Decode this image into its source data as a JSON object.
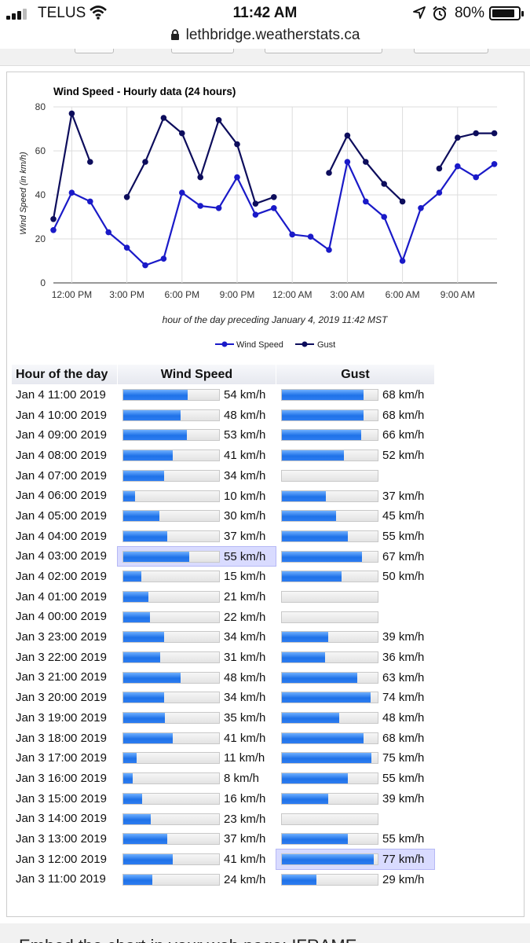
{
  "status_bar": {
    "carrier": "TELUS",
    "time": "11:42 AM",
    "battery_pct": "80%"
  },
  "browser": {
    "url": "lethbridge.weatherstats.ca"
  },
  "chart_data": {
    "type": "line",
    "title": "Wind Speed - Hourly data (24 hours)",
    "ylabel": "Wind Speed (in km/h)",
    "xlabel": "hour of the day preceding January 4, 2019 11:42 MST",
    "ylim": [
      0,
      80
    ],
    "yticks": [
      "0",
      "20",
      "40",
      "60",
      "80"
    ],
    "x_tick_labels": [
      "12:00 PM",
      "3:00 PM",
      "6:00 PM",
      "9:00 PM",
      "12:00 AM",
      "3:00 AM",
      "6:00 AM",
      "9:00 AM"
    ],
    "x": [
      "Jan 3 11:00",
      "Jan 3 12:00",
      "Jan 3 13:00",
      "Jan 3 14:00",
      "Jan 3 15:00",
      "Jan 3 16:00",
      "Jan 3 17:00",
      "Jan 3 18:00",
      "Jan 3 19:00",
      "Jan 3 20:00",
      "Jan 3 21:00",
      "Jan 3 22:00",
      "Jan 3 23:00",
      "Jan 4 00:00",
      "Jan 4 01:00",
      "Jan 4 02:00",
      "Jan 4 03:00",
      "Jan 4 04:00",
      "Jan 4 05:00",
      "Jan 4 06:00",
      "Jan 4 07:00",
      "Jan 4 08:00",
      "Jan 4 09:00",
      "Jan 4 10:00",
      "Jan 4 11:00"
    ],
    "series": [
      {
        "name": "Wind Speed",
        "color": "#1a1ac8",
        "values": [
          24,
          41,
          37,
          23,
          16,
          8,
          11,
          41,
          35,
          34,
          48,
          31,
          34,
          22,
          21,
          15,
          55,
          37,
          30,
          10,
          34,
          41,
          53,
          48,
          54
        ]
      },
      {
        "name": "Gust",
        "color": "#0d0d5c",
        "values": [
          29,
          77,
          55,
          null,
          39,
          55,
          75,
          68,
          48,
          74,
          63,
          36,
          39,
          null,
          null,
          50,
          67,
          55,
          45,
          37,
          null,
          52,
          66,
          68,
          68
        ]
      }
    ],
    "legend": "bottom",
    "grid": true
  },
  "table": {
    "headers": {
      "hour": "Hour of the day",
      "wind": "Wind Speed",
      "gust": "Gust"
    },
    "bar_max": 80,
    "rows": [
      {
        "hour": "Jan 4 11:00 2019",
        "wind": 54,
        "wind_text": "54 km/h",
        "gust": 68,
        "gust_text": "68 km/h"
      },
      {
        "hour": "Jan 4 10:00 2019",
        "wind": 48,
        "wind_text": "48 km/h",
        "gust": 68,
        "gust_text": "68 km/h"
      },
      {
        "hour": "Jan 4 09:00 2019",
        "wind": 53,
        "wind_text": "53 km/h",
        "gust": 66,
        "gust_text": "66 km/h"
      },
      {
        "hour": "Jan 4 08:00 2019",
        "wind": 41,
        "wind_text": "41 km/h",
        "gust": 52,
        "gust_text": "52 km/h"
      },
      {
        "hour": "Jan 4 07:00 2019",
        "wind": 34,
        "wind_text": "34 km/h",
        "gust": null,
        "gust_text": ""
      },
      {
        "hour": "Jan 4 06:00 2019",
        "wind": 10,
        "wind_text": "10 km/h",
        "gust": 37,
        "gust_text": "37 km/h"
      },
      {
        "hour": "Jan 4 05:00 2019",
        "wind": 30,
        "wind_text": "30 km/h",
        "gust": 45,
        "gust_text": "45 km/h"
      },
      {
        "hour": "Jan 4 04:00 2019",
        "wind": 37,
        "wind_text": "37 km/h",
        "gust": 55,
        "gust_text": "55 km/h"
      },
      {
        "hour": "Jan 4 03:00 2019",
        "wind": 55,
        "wind_text": "55 km/h",
        "gust": 67,
        "gust_text": "67 km/h",
        "wind_max": true
      },
      {
        "hour": "Jan 4 02:00 2019",
        "wind": 15,
        "wind_text": "15 km/h",
        "gust": 50,
        "gust_text": "50 km/h"
      },
      {
        "hour": "Jan 4 01:00 2019",
        "wind": 21,
        "wind_text": "21 km/h",
        "gust": null,
        "gust_text": ""
      },
      {
        "hour": "Jan 4 00:00 2019",
        "wind": 22,
        "wind_text": "22 km/h",
        "gust": null,
        "gust_text": ""
      },
      {
        "hour": "Jan 3 23:00 2019",
        "wind": 34,
        "wind_text": "34 km/h",
        "gust": 39,
        "gust_text": "39 km/h"
      },
      {
        "hour": "Jan 3 22:00 2019",
        "wind": 31,
        "wind_text": "31 km/h",
        "gust": 36,
        "gust_text": "36 km/h"
      },
      {
        "hour": "Jan 3 21:00 2019",
        "wind": 48,
        "wind_text": "48 km/h",
        "gust": 63,
        "gust_text": "63 km/h"
      },
      {
        "hour": "Jan 3 20:00 2019",
        "wind": 34,
        "wind_text": "34 km/h",
        "gust": 74,
        "gust_text": "74 km/h"
      },
      {
        "hour": "Jan 3 19:00 2019",
        "wind": 35,
        "wind_text": "35 km/h",
        "gust": 48,
        "gust_text": "48 km/h"
      },
      {
        "hour": "Jan 3 18:00 2019",
        "wind": 41,
        "wind_text": "41 km/h",
        "gust": 68,
        "gust_text": "68 km/h"
      },
      {
        "hour": "Jan 3 17:00 2019",
        "wind": 11,
        "wind_text": "11 km/h",
        "gust": 75,
        "gust_text": "75 km/h"
      },
      {
        "hour": "Jan 3 16:00 2019",
        "wind": 8,
        "wind_text": "8 km/h",
        "gust": 55,
        "gust_text": "55 km/h"
      },
      {
        "hour": "Jan 3 15:00 2019",
        "wind": 16,
        "wind_text": "16 km/h",
        "gust": 39,
        "gust_text": "39 km/h"
      },
      {
        "hour": "Jan 3 14:00 2019",
        "wind": 23,
        "wind_text": "23 km/h",
        "gust": null,
        "gust_text": ""
      },
      {
        "hour": "Jan 3 13:00 2019",
        "wind": 37,
        "wind_text": "37 km/h",
        "gust": 55,
        "gust_text": "55 km/h"
      },
      {
        "hour": "Jan 3 12:00 2019",
        "wind": 41,
        "wind_text": "41 km/h",
        "gust": 77,
        "gust_text": "77 km/h",
        "gust_max": true
      },
      {
        "hour": "Jan 3 11:00 2019",
        "wind": 24,
        "wind_text": "24 km/h",
        "gust": 29,
        "gust_text": "29 km/h"
      }
    ]
  },
  "footer": {
    "text": "Embed the chart in your web page: IFRAME"
  }
}
